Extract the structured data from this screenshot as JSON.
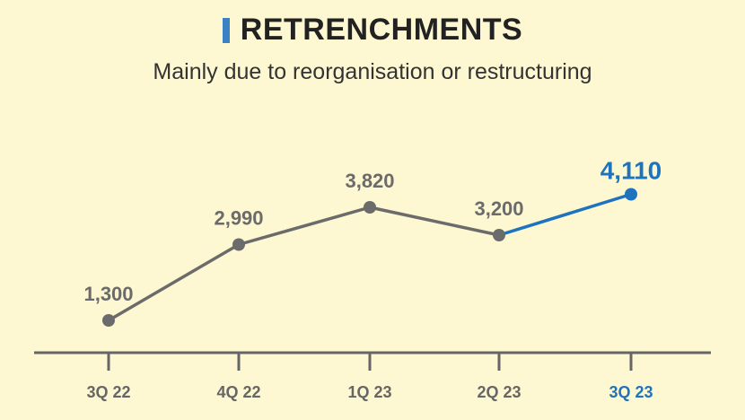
{
  "title": "RETRENCHMENTS",
  "subtitle": "Mainly due to reorganisation or restructuring",
  "colors": {
    "background": "#fdf7d2",
    "series_line": "#6b6b6b",
    "highlight": "#1e73be",
    "axis": "#666666",
    "title_bar": "#3b82c4"
  },
  "chart_data": {
    "type": "line",
    "categories": [
      "3Q 22",
      "4Q 22",
      "1Q 23",
      "2Q 23",
      "3Q 23"
    ],
    "values": [
      1300,
      2990,
      3820,
      3200,
      4110
    ],
    "value_labels": [
      "1,300",
      "2,990",
      "3,820",
      "3,200",
      "4,110"
    ],
    "highlighted_index": 4,
    "ylim": [
      0,
      4500
    ],
    "grid": false
  }
}
